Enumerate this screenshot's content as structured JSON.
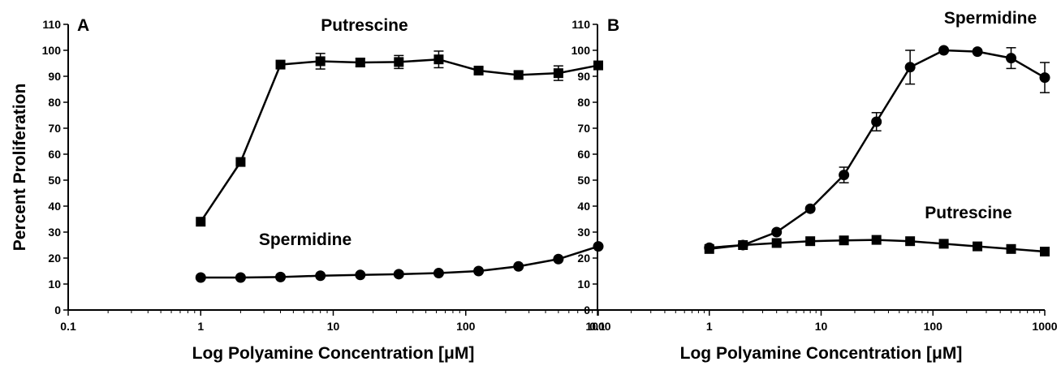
{
  "chart_data": [
    {
      "type": "line",
      "panel_label": "A",
      "xlabel": "Log Polyamine Concentration [μM]",
      "ylabel": "Percent Proliferation",
      "x_scale": "log",
      "xlim": [
        0.1,
        1000
      ],
      "ylim": [
        0,
        110
      ],
      "x_ticks": [
        "0.1",
        "1",
        "10",
        "100",
        "1000"
      ],
      "y_ticks": [
        "0",
        "10",
        "20",
        "30",
        "40",
        "50",
        "60",
        "70",
        "80",
        "90",
        "100",
        "110"
      ],
      "grid": false,
      "series": [
        {
          "name": "Putrescine",
          "marker": "square",
          "x": [
            1,
            2,
            4,
            8,
            16,
            31.25,
            62.5,
            125,
            250,
            500,
            1000
          ],
          "y": [
            34,
            57,
            94.5,
            95.8,
            95.3,
            95.5,
            96.5,
            92.2,
            90.5,
            91.2,
            94.2
          ],
          "error": [
            0,
            0,
            0,
            3,
            1.5,
            2.5,
            3.2,
            1.2,
            1.2,
            2.8,
            1.2
          ]
        },
        {
          "name": "Spermidine",
          "marker": "circle",
          "x": [
            1,
            2,
            4,
            8,
            16,
            31.25,
            62.5,
            125,
            250,
            500,
            1000
          ],
          "y": [
            12.5,
            12.5,
            12.7,
            13.2,
            13.5,
            13.8,
            14.2,
            15,
            16.8,
            19.6,
            24.5
          ],
          "error": [
            0,
            0,
            0,
            0,
            0,
            0,
            0,
            0,
            0,
            0,
            0
          ]
        }
      ]
    },
    {
      "type": "line",
      "panel_label": "B",
      "xlabel": "Log Polyamine Concentration [μM]",
      "ylabel": "",
      "x_scale": "log",
      "xlim": [
        0.1,
        1000
      ],
      "ylim": [
        0,
        110
      ],
      "x_ticks": [
        "0.1",
        "1",
        "10",
        "100",
        "1000"
      ],
      "y_ticks": [
        "0",
        "10",
        "20",
        "30",
        "40",
        "50",
        "60",
        "70",
        "80",
        "90",
        "100",
        "110"
      ],
      "grid": false,
      "series": [
        {
          "name": "Spermidine",
          "marker": "circle",
          "x": [
            1,
            2,
            4,
            8,
            16,
            31.25,
            62.5,
            125,
            250,
            500,
            1000
          ],
          "y": [
            24,
            25,
            30,
            39,
            52,
            72.5,
            93.5,
            100,
            99.5,
            97,
            89.5
          ],
          "error": [
            0,
            0,
            0,
            0,
            3,
            3.5,
            6.5,
            0,
            0,
            4,
            5.8
          ]
        },
        {
          "name": "Putrescine",
          "marker": "square",
          "x": [
            1,
            2,
            4,
            8,
            16,
            31.25,
            62.5,
            125,
            250,
            500,
            1000
          ],
          "y": [
            23.5,
            25,
            25.8,
            26.5,
            26.8,
            27,
            26.5,
            25.5,
            24.5,
            23.5,
            22.5
          ],
          "error": [
            0,
            0,
            0,
            0,
            0,
            0,
            0,
            0,
            0,
            0,
            0
          ]
        }
      ]
    }
  ]
}
